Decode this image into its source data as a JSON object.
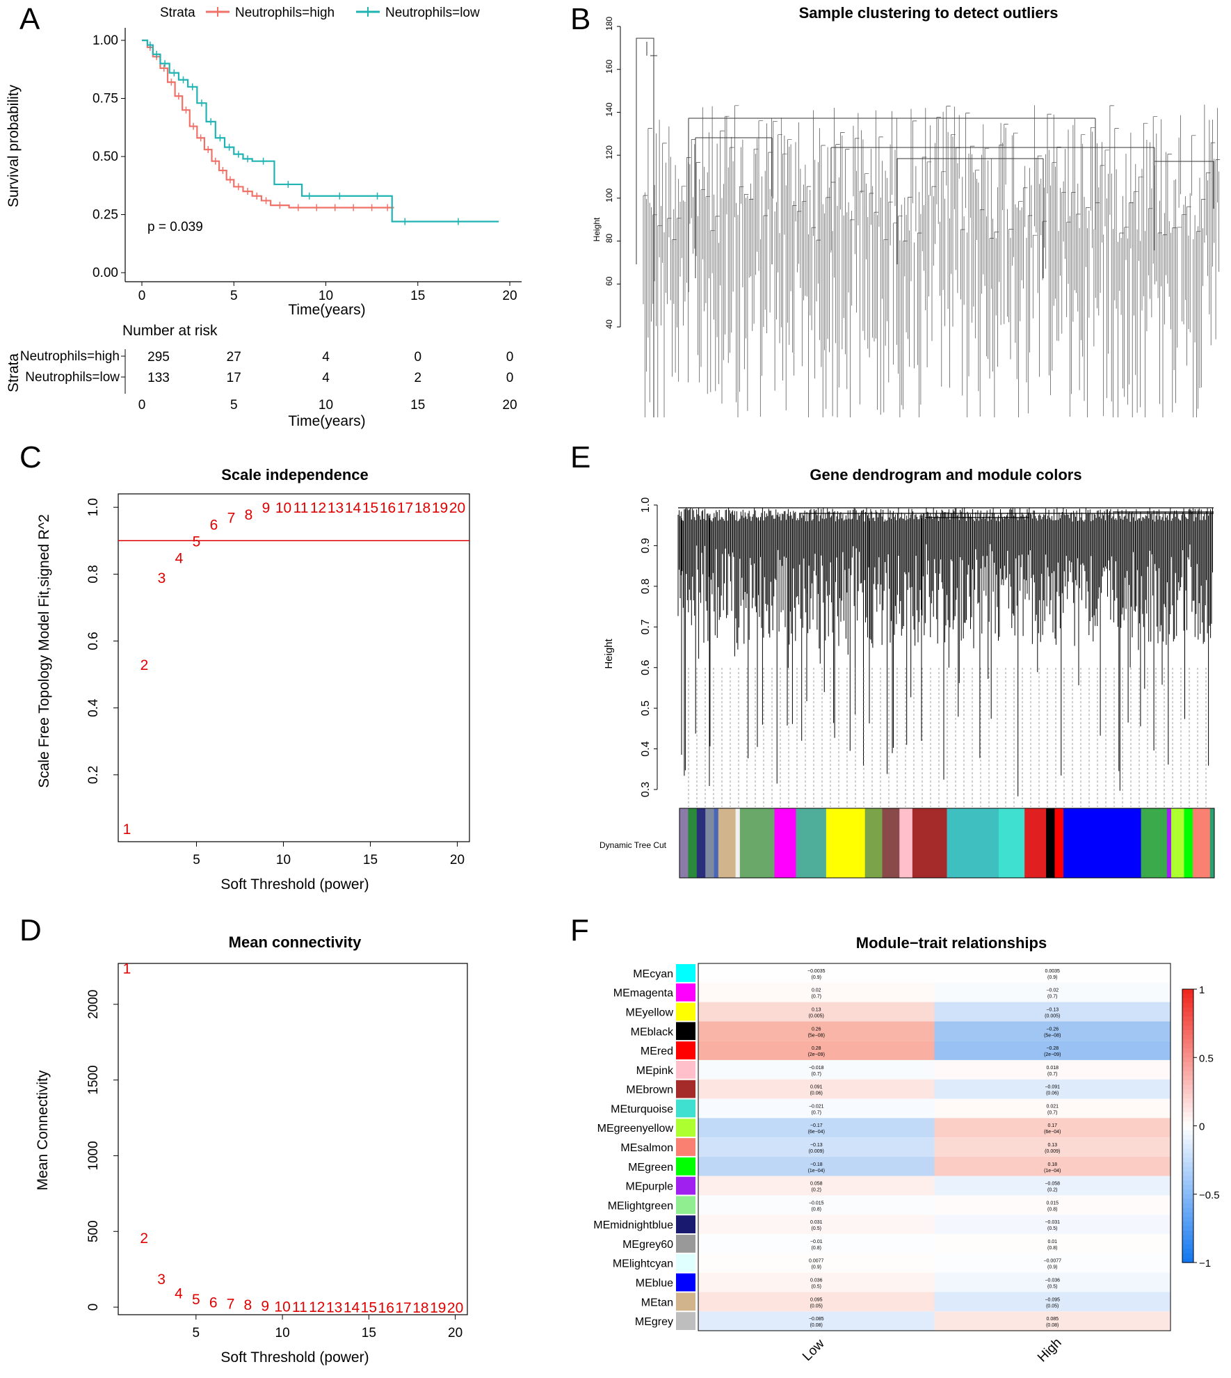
{
  "panels": {
    "A": {
      "letter": "A",
      "legend_title": "Strata",
      "xlabel": "Time(years)",
      "ylabel": "Survival probability",
      "pvalue": "p = 0.039",
      "risk_title": "Number at risk",
      "risk_ylabel": "Strata",
      "risk_xlabel": "Time(years)"
    },
    "B": {
      "letter": "B",
      "title": "Sample clustering to detect outliers",
      "ylabel": "Height"
    },
    "C": {
      "letter": "C",
      "title": "Scale independence",
      "xlabel": "Soft Threshold (power)",
      "ylabel": "Scale Free Topology Model Fit,signed R^2"
    },
    "D": {
      "letter": "D",
      "title": "Mean connectivity",
      "xlabel": "Soft Threshold (power)",
      "ylabel": "Mean Connectivity"
    },
    "E": {
      "letter": "E",
      "title": "Gene dendrogram and module colors",
      "ylabel": "Height",
      "colorbar_label": "Dynamic Tree Cut"
    },
    "F": {
      "letter": "F",
      "title": "Module−trait relationships"
    }
  },
  "chart_data": [
    {
      "id": "A",
      "type": "line",
      "subtype": "kaplan-meier",
      "xlim": [
        0,
        20
      ],
      "ylim": [
        0,
        1
      ],
      "x_ticks": [
        0,
        5,
        10,
        15,
        20
      ],
      "y_ticks": [
        "0.00",
        "0.25",
        "0.50",
        "0.75",
        "1.00"
      ],
      "series": [
        {
          "name": "Neutrophils=high",
          "color": "#f07167",
          "x": [
            0,
            0.3,
            0.6,
            1.0,
            1.4,
            1.8,
            2.2,
            2.6,
            3.0,
            3.4,
            3.8,
            4.2,
            4.6,
            5.0,
            5.5,
            6.0,
            6.5,
            7.0,
            8.0,
            9.0,
            10.0,
            11.0,
            12.0,
            13.0,
            13.7
          ],
          "y": [
            1.0,
            0.97,
            0.93,
            0.88,
            0.82,
            0.76,
            0.7,
            0.63,
            0.58,
            0.53,
            0.48,
            0.44,
            0.4,
            0.37,
            0.35,
            0.33,
            0.31,
            0.29,
            0.28,
            0.28,
            0.28,
            0.28,
            0.28,
            0.28,
            0.28
          ]
        },
        {
          "name": "Neutrophils=low",
          "color": "#1fb3b3",
          "x": [
            0,
            0.3,
            0.6,
            1.0,
            1.5,
            2.0,
            2.5,
            3.0,
            3.5,
            4.0,
            4.5,
            5.0,
            5.5,
            6.0,
            7.2,
            8.7,
            9.5,
            12.0,
            13.6,
            15.0,
            19.4
          ],
          "y": [
            1.0,
            0.98,
            0.94,
            0.9,
            0.86,
            0.83,
            0.8,
            0.73,
            0.65,
            0.58,
            0.54,
            0.51,
            0.49,
            0.48,
            0.38,
            0.33,
            0.33,
            0.33,
            0.22,
            0.22,
            0.22
          ]
        }
      ],
      "risk_table": {
        "times": [
          0,
          5,
          10,
          15,
          20
        ],
        "rows": [
          {
            "name": "Neutrophils=high",
            "counts": [
              "295",
              "27",
              "4",
              "0",
              "0"
            ]
          },
          {
            "name": "Neutrophils=low",
            "counts": [
              "133",
              "17",
              "4",
              "2",
              "0"
            ]
          }
        ]
      }
    },
    {
      "id": "B",
      "type": "dendrogram",
      "y_ticks": [
        "40",
        "60",
        "80",
        "100",
        "120",
        "140",
        "160",
        "180"
      ]
    },
    {
      "id": "C",
      "type": "scatter",
      "xlim": [
        0.5,
        20.7
      ],
      "ylim": [
        0.0,
        1.04
      ],
      "x_ticks": [
        "5",
        "10",
        "15",
        "20"
      ],
      "y_ticks": [
        "0.2",
        "0.4",
        "0.6",
        "0.8",
        "1.0"
      ],
      "hline": 0.9,
      "hline_color": "#e00000",
      "labels": [
        "1",
        "2",
        "3",
        "4",
        "5",
        "6",
        "7",
        "8",
        "9",
        "10",
        "11",
        "12",
        "13",
        "14",
        "15",
        "16",
        "17",
        "18",
        "19",
        "20"
      ],
      "x": [
        1,
        2,
        3,
        4,
        5,
        6,
        7,
        8,
        9,
        10,
        11,
        12,
        13,
        14,
        15,
        16,
        17,
        18,
        19,
        20
      ],
      "y": [
        0.04,
        0.53,
        0.79,
        0.85,
        0.9,
        0.95,
        0.97,
        0.98,
        1.0,
        1.0,
        1.0,
        1.0,
        1.0,
        1.0,
        1.0,
        1.0,
        1.0,
        1.0,
        1.0,
        1.0
      ]
    },
    {
      "id": "D",
      "type": "scatter",
      "xlim": [
        0.5,
        20.7
      ],
      "ylim": [
        -50,
        2270
      ],
      "x_ticks": [
        "5",
        "10",
        "15",
        "20"
      ],
      "y_ticks": [
        "0",
        "500",
        "1000",
        "1500",
        "2000"
      ],
      "labels": [
        "1",
        "2",
        "3",
        "4",
        "5",
        "6",
        "7",
        "8",
        "9",
        "10",
        "11",
        "12",
        "13",
        "14",
        "15",
        "16",
        "17",
        "18",
        "19",
        "20"
      ],
      "x": [
        1,
        2,
        3,
        4,
        5,
        6,
        7,
        8,
        9,
        10,
        11,
        12,
        13,
        14,
        15,
        16,
        17,
        18,
        19,
        20
      ],
      "y": [
        2240,
        460,
        190,
        95,
        55,
        35,
        25,
        18,
        12,
        8,
        6,
        4,
        3,
        2,
        2,
        1,
        1,
        1,
        1,
        1
      ]
    },
    {
      "id": "E",
      "type": "dendrogram",
      "y_ticks": [
        "0.3",
        "0.4",
        "0.5",
        "0.6",
        "0.7",
        "0.8",
        "0.9",
        "1.0"
      ],
      "module_colors": [
        {
          "color": "#8a7ba8",
          "weight": 2
        },
        {
          "color": "#2a8a3a",
          "weight": 2
        },
        {
          "color": "#2b2e7a",
          "weight": 2
        },
        {
          "color": "#7d8aa0",
          "weight": 2
        },
        {
          "color": "#4a67b8",
          "weight": 1
        },
        {
          "color": "#d2b48c",
          "weight": 4
        },
        {
          "color": "#f0f0f0",
          "weight": 1
        },
        {
          "color": "#6aa86a",
          "weight": 8
        },
        {
          "color": "#ff00ff",
          "weight": 5
        },
        {
          "color": "#4fae9a",
          "weight": 7
        },
        {
          "color": "#ffff00",
          "weight": 9
        },
        {
          "color": "#7aa34a",
          "weight": 4
        },
        {
          "color": "#8b4a4a",
          "weight": 4
        },
        {
          "color": "#ffc0cb",
          "weight": 3
        },
        {
          "color": "#a52a2a",
          "weight": 8
        },
        {
          "color": "#3fbfc0",
          "weight": 12
        },
        {
          "color": "#40e0d0",
          "weight": 6
        },
        {
          "color": "#e02020",
          "weight": 5
        },
        {
          "color": "#000000",
          "weight": 2
        },
        {
          "color": "#ff0000",
          "weight": 2
        },
        {
          "color": "#0000ff",
          "weight": 18
        },
        {
          "color": "#3aaa4a",
          "weight": 6
        },
        {
          "color": "#a020f0",
          "weight": 1
        },
        {
          "color": "#adff2f",
          "weight": 3
        },
        {
          "color": "#00ff00",
          "weight": 2
        },
        {
          "color": "#fa8072",
          "weight": 4
        },
        {
          "color": "#2aa070",
          "weight": 1
        }
      ]
    },
    {
      "id": "F",
      "type": "heatmap",
      "rows": [
        "MEcyan",
        "MEmagenta",
        "MEyellow",
        "MEblack",
        "MEred",
        "MEpink",
        "MEbrown",
        "MEturquoise",
        "MEgreenyellow",
        "MEsalmon",
        "MEgreen",
        "MEpurple",
        "MElightgreen",
        "MEmidnightblue",
        "MEgrey60",
        "MElightcyan",
        "MEblue",
        "MEtan",
        "MEgrey"
      ],
      "row_colors": [
        "#00ffff",
        "#ff00ff",
        "#ffff00",
        "#000000",
        "#ff0000",
        "#ffc0cb",
        "#a52a2a",
        "#40e0d0",
        "#adff2f",
        "#fa8072",
        "#00ff00",
        "#a020f0",
        "#90ee90",
        "#191970",
        "#999999",
        "#e0ffff",
        "#0000ff",
        "#d2b48c",
        "#bebebe"
      ],
      "columns": [
        "Low",
        "High"
      ],
      "values": [
        [
          -0.0035,
          0.0035
        ],
        [
          0.02,
          -0.02
        ],
        [
          0.13,
          -0.13
        ],
        [
          0.26,
          -0.26
        ],
        [
          0.28,
          -0.28
        ],
        [
          -0.018,
          0.018
        ],
        [
          0.091,
          -0.091
        ],
        [
          -0.021,
          0.021
        ],
        [
          -0.17,
          0.17
        ],
        [
          -0.13,
          0.13
        ],
        [
          -0.18,
          0.18
        ],
        [
          0.058,
          -0.058
        ],
        [
          -0.015,
          0.015
        ],
        [
          0.031,
          -0.031
        ],
        [
          -0.01,
          0.01
        ],
        [
          0.0077,
          -0.0077
        ],
        [
          0.036,
          -0.036
        ],
        [
          0.095,
          -0.095
        ],
        [
          -0.085,
          0.085
        ]
      ],
      "value_labels": [
        [
          "−0.0035",
          "0.0035"
        ],
        [
          "0.02",
          "−0.02"
        ],
        [
          "0.13",
          "−0.13"
        ],
        [
          "0.26",
          "−0.26"
        ],
        [
          "0.28",
          "−0.28"
        ],
        [
          "−0.018",
          "0.018"
        ],
        [
          "0.091",
          "−0.091"
        ],
        [
          "−0.021",
          "0.021"
        ],
        [
          "−0.17",
          "0.17"
        ],
        [
          "−0.13",
          "0.13"
        ],
        [
          "−0.18",
          "0.18"
        ],
        [
          "0.058",
          "−0.058"
        ],
        [
          "−0.015",
          "0.015"
        ],
        [
          "0.031",
          "−0.031"
        ],
        [
          "−0.01",
          "0.01"
        ],
        [
          "0.0077",
          "−0.0077"
        ],
        [
          "0.036",
          "−0.036"
        ],
        [
          "0.095",
          "−0.095"
        ],
        [
          "−0.085",
          "0.085"
        ]
      ],
      "pvalues": [
        "(0.9)",
        "(0.7)",
        "(0.005)",
        "(5e−08)",
        "(2e−09)",
        "(0.7)",
        "(0.06)",
        "(0.7)",
        "(6e−04)",
        "(0.009)",
        "(1e−04)",
        "(0.2)",
        "(0.8)",
        "(0.5)",
        "(0.8)",
        "(0.9)",
        "(0.5)",
        "(0.05)",
        "(0.08)"
      ],
      "colorbar_ticks": [
        "1",
        "0.5",
        "0",
        "−0.5",
        "−1"
      ],
      "colorbar_range": [
        -1,
        1
      ]
    }
  ]
}
